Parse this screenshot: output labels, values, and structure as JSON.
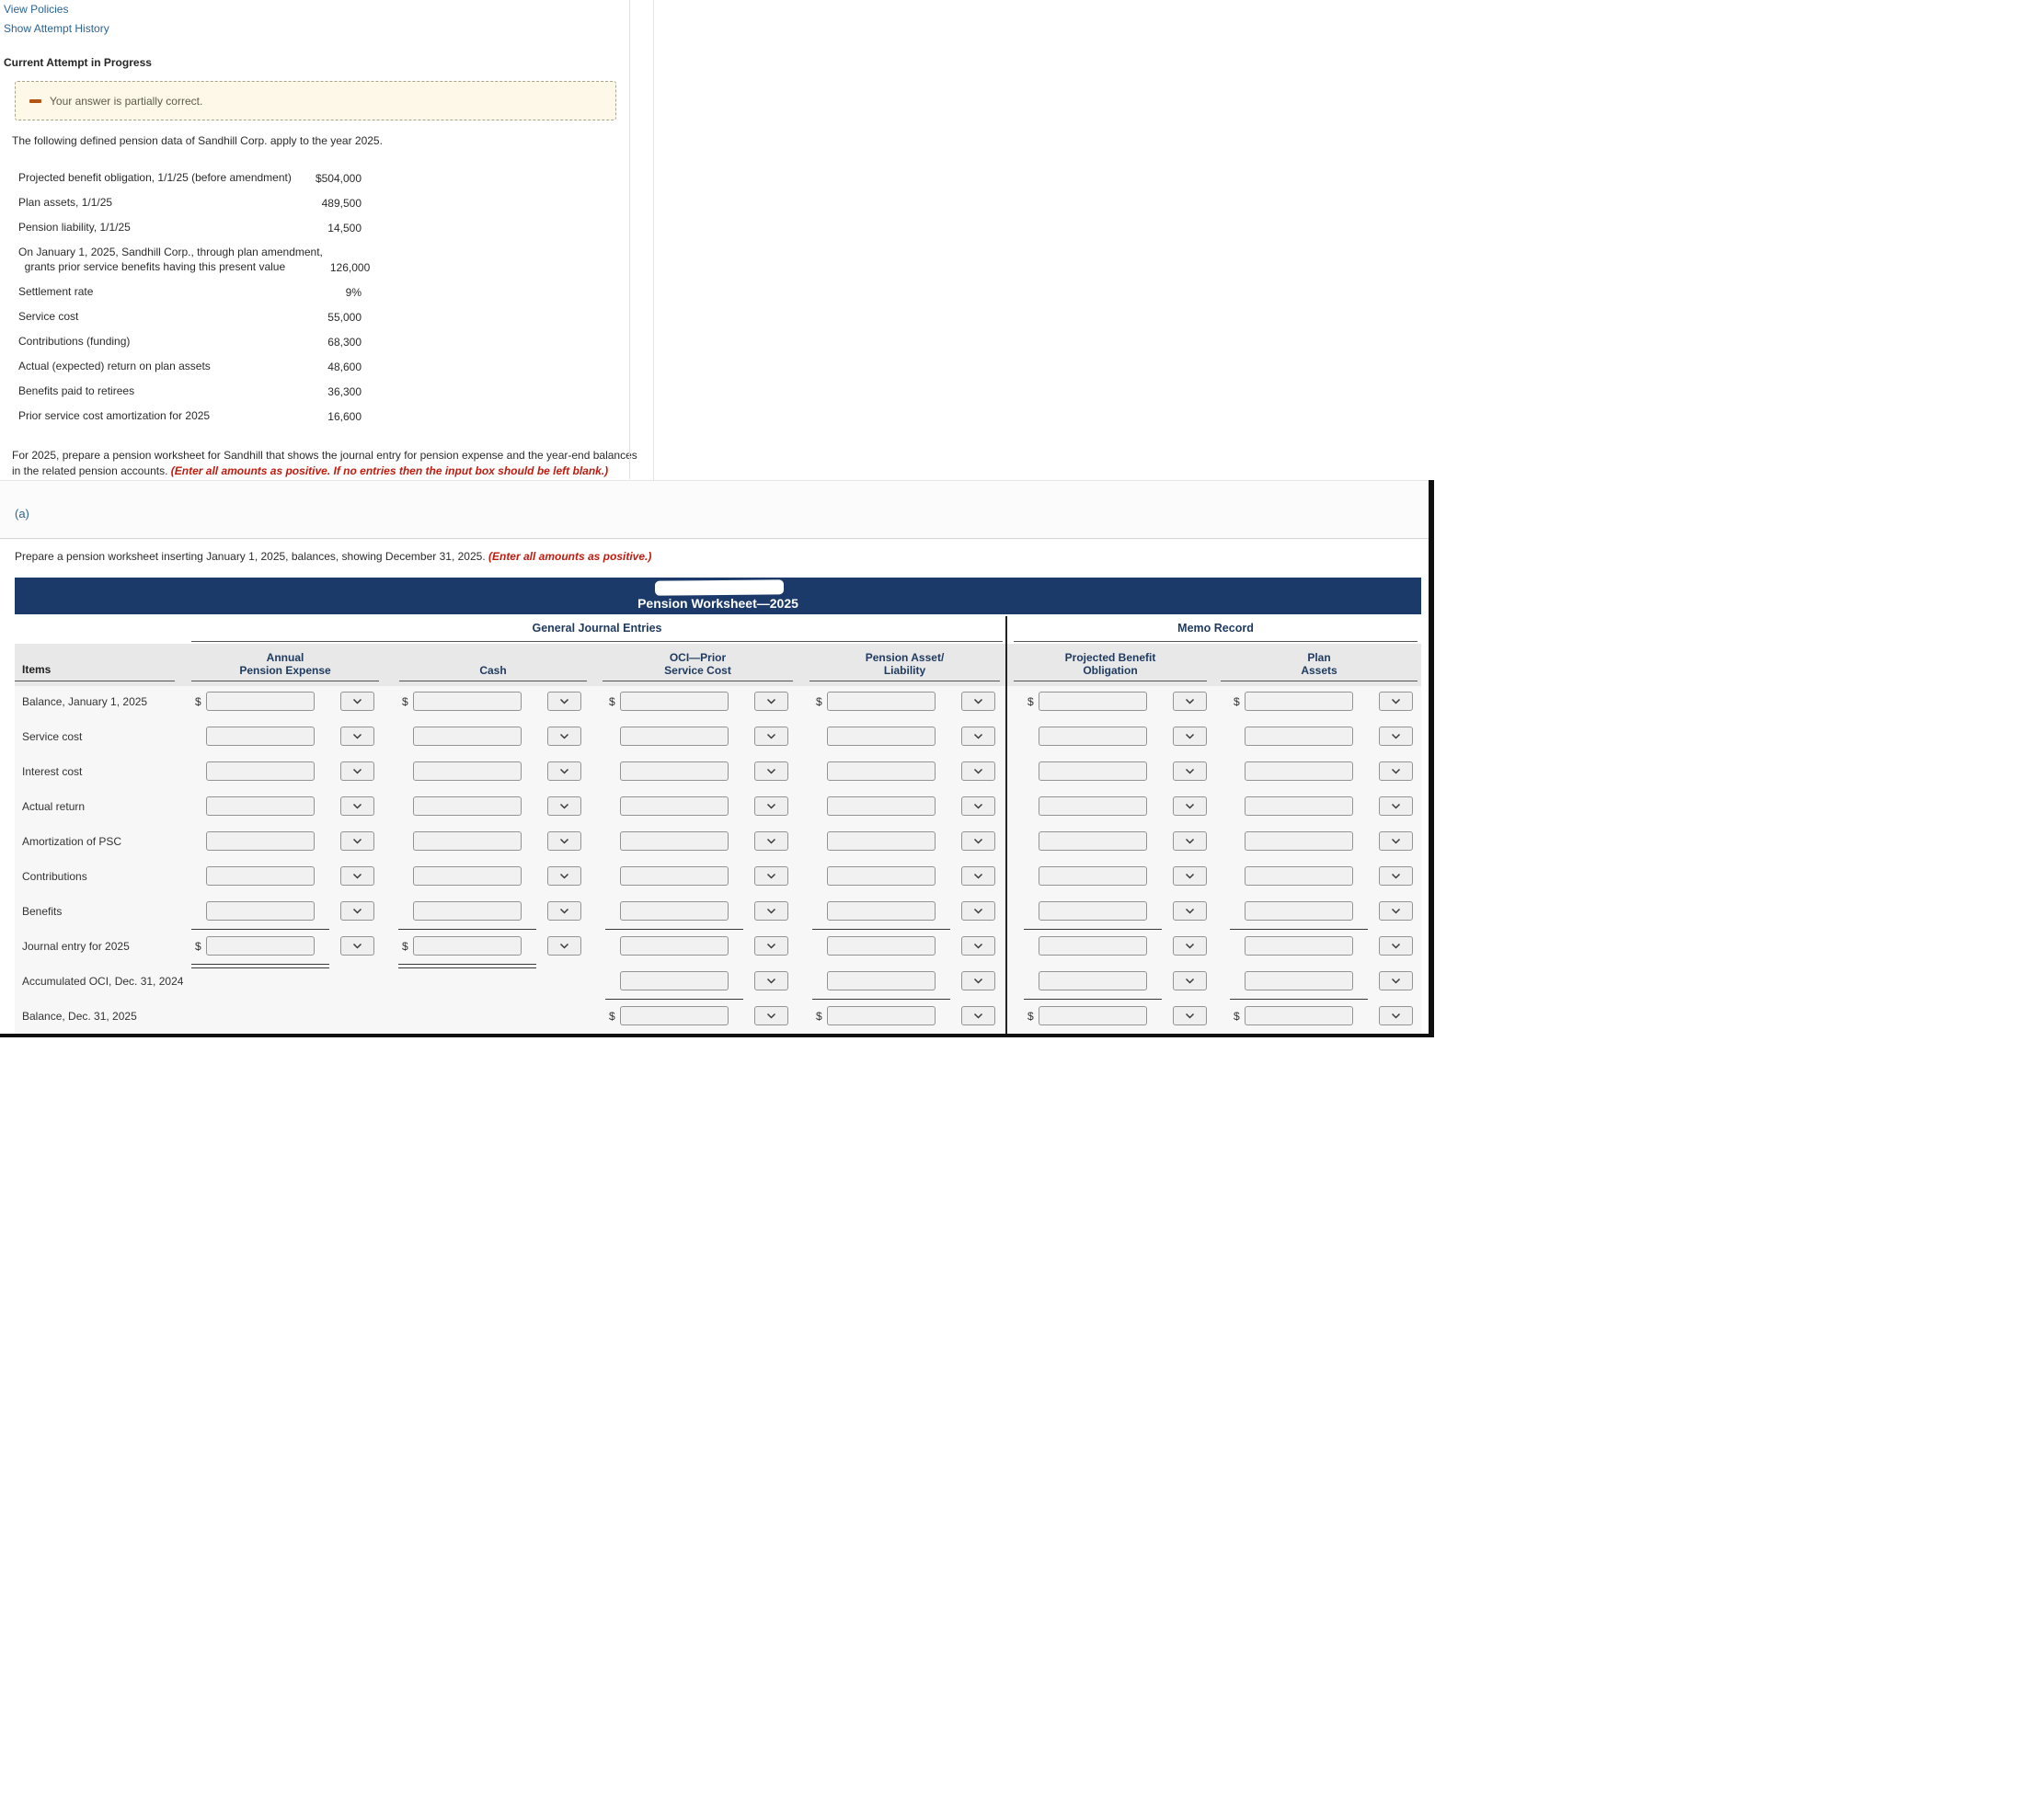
{
  "links": {
    "view_policies": "View Policies",
    "show_attempt_history": "Show Attempt History"
  },
  "attempt": {
    "heading": "Current Attempt in Progress",
    "alert": "Your answer is partially correct."
  },
  "intro": "The following defined pension data of Sandhill Corp. apply to the year 2025.",
  "pension_data": {
    "rows": [
      {
        "label": "Projected benefit obligation, 1/1/25 (before amendment)",
        "value": "$504,000"
      },
      {
        "label": "Plan assets, 1/1/25",
        "value": "489,500"
      },
      {
        "label": "Pension liability, 1/1/25",
        "value": "14,500"
      },
      {
        "label": "On January 1, 2025, Sandhill Corp., through plan amendment,\n  grants prior service benefits having this present value",
        "value": "126,000"
      },
      {
        "label": "Settlement rate",
        "value": "9%"
      },
      {
        "label": "Service cost",
        "value": "55,000"
      },
      {
        "label": "Contributions (funding)",
        "value": "68,300"
      },
      {
        "label": "Actual (expected) return on plan assets",
        "value": "48,600"
      },
      {
        "label": "Benefits paid to retirees",
        "value": "36,300"
      },
      {
        "label": "Prior service cost amortization for 2025",
        "value": "16,600"
      }
    ]
  },
  "task": {
    "text": "For 2025, prepare a pension worksheet for Sandhill that shows the journal entry for pension expense and the year-end balances in the related pension accounts. ",
    "note": "(Enter all amounts as positive. If no entries then the input box should be left blank.)"
  },
  "section_a": {
    "label": "(a)",
    "instruction": "Prepare a pension worksheet inserting January 1, 2025, balances, showing December 31, 2025. ",
    "note": "(Enter all amounts as positive.)"
  },
  "worksheet": {
    "title": "Pension Worksheet—2025",
    "group_headers": {
      "journal": "General Journal Entries",
      "memo": "Memo Record"
    },
    "items_header": "Items",
    "columns": [
      "Annual\nPension Expense",
      "Cash",
      "OCI—Prior\nService Cost",
      "Pension Asset/\nLiability",
      "Projected Benefit\nObligation",
      "Plan\nAssets"
    ],
    "rows": [
      {
        "label": "Balance, January 1, 2025",
        "cells": [
          1,
          1,
          1,
          1,
          1,
          1
        ],
        "dollars": [
          1,
          1,
          1,
          1,
          1,
          1
        ],
        "underline": [],
        "double": []
      },
      {
        "label": "Service cost",
        "cells": [
          1,
          1,
          1,
          1,
          1,
          1
        ],
        "dollars": [
          0,
          0,
          0,
          0,
          0,
          0
        ],
        "underline": [],
        "double": []
      },
      {
        "label": "Interest cost",
        "cells": [
          1,
          1,
          1,
          1,
          1,
          1
        ],
        "dollars": [
          0,
          0,
          0,
          0,
          0,
          0
        ],
        "underline": [],
        "double": []
      },
      {
        "label": "Actual return",
        "cells": [
          1,
          1,
          1,
          1,
          1,
          1
        ],
        "dollars": [
          0,
          0,
          0,
          0,
          0,
          0
        ],
        "underline": [],
        "double": []
      },
      {
        "label": "Amortization of PSC",
        "cells": [
          1,
          1,
          1,
          1,
          1,
          1
        ],
        "dollars": [
          0,
          0,
          0,
          0,
          0,
          0
        ],
        "underline": [],
        "double": []
      },
      {
        "label": "Contributions",
        "cells": [
          1,
          1,
          1,
          1,
          1,
          1
        ],
        "dollars": [
          0,
          0,
          0,
          0,
          0,
          0
        ],
        "underline": [],
        "double": []
      },
      {
        "label": "Benefits",
        "cells": [
          1,
          1,
          1,
          1,
          1,
          1
        ],
        "dollars": [
          0,
          0,
          0,
          0,
          0,
          0
        ],
        "underline": [
          0,
          1,
          2,
          3,
          4,
          5
        ],
        "double": []
      },
      {
        "label": "Journal entry for 2025",
        "cells": [
          1,
          1,
          1,
          1,
          1,
          1
        ],
        "dollars": [
          1,
          1,
          0,
          0,
          0,
          0
        ],
        "underline": [],
        "double": [
          0,
          1
        ]
      },
      {
        "label": "Accumulated OCI, Dec. 31, 2024",
        "cells": [
          0,
          0,
          1,
          1,
          1,
          1
        ],
        "dollars": [
          0,
          0,
          0,
          0,
          0,
          0
        ],
        "underline": [
          2,
          3,
          4,
          5
        ],
        "double": []
      },
      {
        "label": "Balance, Dec. 31, 2025",
        "cells": [
          0,
          0,
          1,
          1,
          1,
          1
        ],
        "dollars": [
          0,
          0,
          1,
          1,
          1,
          1
        ],
        "underline": [],
        "double": []
      }
    ],
    "input_value": "",
    "colors": {
      "header_navy": "#1c3a69",
      "link_blue": "#2a6496",
      "note_red": "#c11b0e",
      "warning_bg": "#fdf8e8"
    }
  }
}
